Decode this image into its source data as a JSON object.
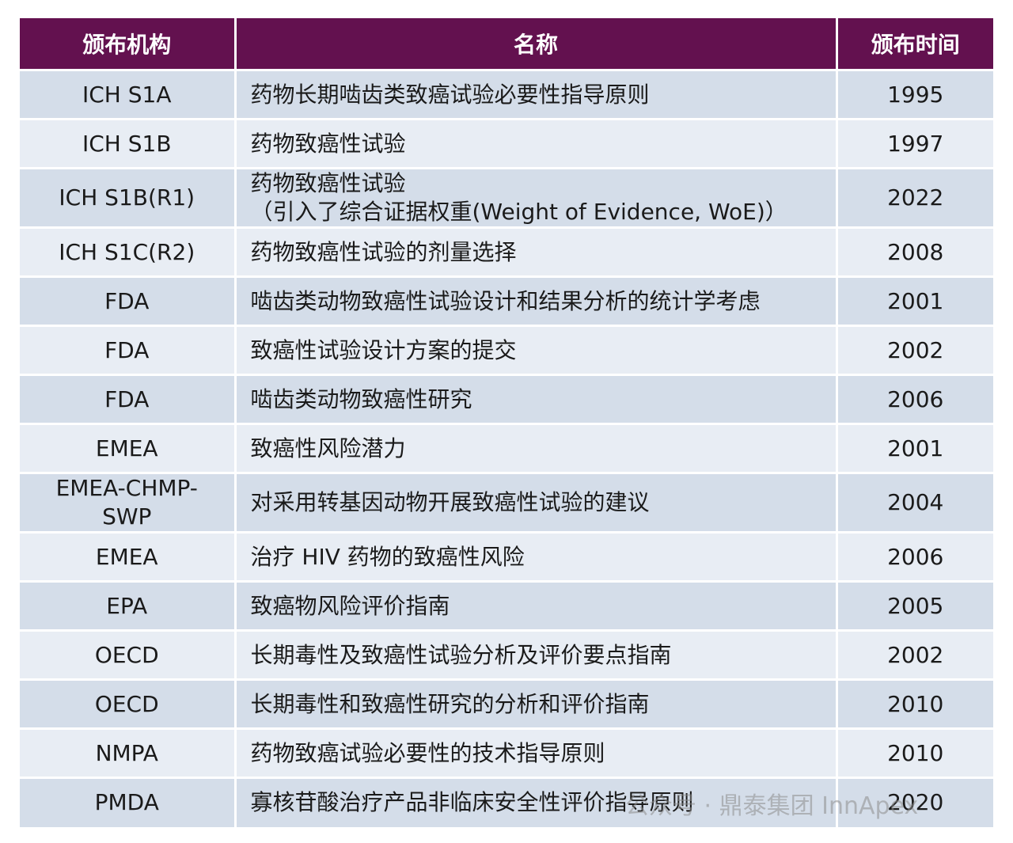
{
  "table": {
    "headers": [
      "颁布机构",
      "名称",
      "颁布时间"
    ],
    "rows": [
      {
        "agency": "ICH S1A",
        "name": "药物长期啮齿类致癌试验必要性指导原则",
        "year": "1995"
      },
      {
        "agency": "ICH S1B",
        "name": "药物致癌性试验",
        "year": "1997"
      },
      {
        "agency": "ICH S1B(R1)",
        "name": "药物致癌性试验",
        "name2": "（引入了综合证据权重(Weight of Evidence, WoE)）",
        "year": "2022"
      },
      {
        "agency": "ICH S1C(R2)",
        "name": "药物致癌性试验的剂量选择",
        "year": "2008"
      },
      {
        "agency": "FDA",
        "name": "啮齿类动物致癌性试验设计和结果分析的统计学考虑",
        "year": "2001"
      },
      {
        "agency": "FDA",
        "name": "致癌性试验设计方案的提交",
        "year": "2002"
      },
      {
        "agency": "FDA",
        "name": "啮齿类动物致癌性研究",
        "year": "2006"
      },
      {
        "agency": "EMEA",
        "name": "致癌性风险潜力",
        "year": "2001"
      },
      {
        "agency": "EMEA-CHMP-",
        "agency2": "SWP",
        "name": "对采用转基因动物开展致癌性试验的建议",
        "year": "2004"
      },
      {
        "agency": "EMEA",
        "name": "治疗 HIV 药物的致癌性风险",
        "year": "2006"
      },
      {
        "agency": "EPA",
        "name": "致癌物风险评价指南",
        "year": "2005"
      },
      {
        "agency": "OECD",
        "name": "长期毒性及致癌性试验分析及评价要点指南",
        "year": "2002"
      },
      {
        "agency": "OECD",
        "name": "长期毒性和致癌性研究的分析和评价指南",
        "year": "2010"
      },
      {
        "agency": "NMPA",
        "name": "药物致癌试验必要性的技术指导原则",
        "year": "2010"
      },
      {
        "agency": "PMDA",
        "name": "寡核苷酸治疗产品非临床安全性评价指导原则",
        "year": "2020"
      }
    ]
  },
  "watermark": "公众号 · 鼎泰集团 InnApex",
  "colors": {
    "header_bg": "#63114f",
    "row_dark": "#d4dde9",
    "row_light": "#e8edf4"
  }
}
